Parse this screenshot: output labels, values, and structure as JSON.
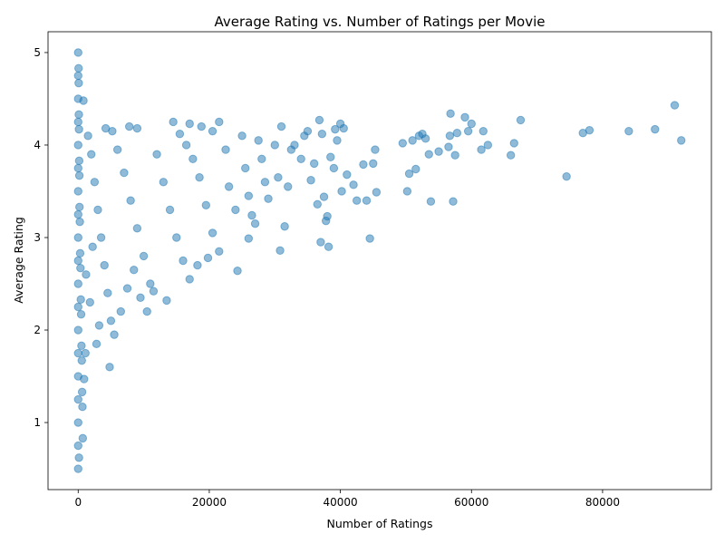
{
  "chart_data": {
    "type": "scatter",
    "title": "Average Rating vs. Number of Ratings per Movie",
    "xlabel": "Number of Ratings",
    "ylabel": "Average Rating",
    "xlim": [
      -4600,
      96600
    ],
    "ylim": [
      0.275,
      5.225
    ],
    "x_ticks": [
      0,
      20000,
      40000,
      60000,
      80000
    ],
    "x_tick_labels": [
      "0",
      "20000",
      "40000",
      "60000",
      "80000"
    ],
    "y_ticks": [
      1,
      2,
      3,
      4,
      5
    ],
    "y_tick_labels": [
      "1",
      "2",
      "3",
      "4",
      "5"
    ],
    "grid": false,
    "legend": false,
    "marker_color": "#1f77b4",
    "marker_alpha": 0.5,
    "points": [
      [
        0,
        5.0
      ],
      [
        0,
        4.75
      ],
      [
        0,
        4.5
      ],
      [
        0,
        4.25
      ],
      [
        0,
        4.0
      ],
      [
        0,
        3.75
      ],
      [
        0,
        3.5
      ],
      [
        0,
        3.25
      ],
      [
        0,
        3.0
      ],
      [
        0,
        2.75
      ],
      [
        0,
        2.5
      ],
      [
        0,
        2.25
      ],
      [
        0,
        2.0
      ],
      [
        0,
        1.75
      ],
      [
        0,
        1.5
      ],
      [
        0,
        1.25
      ],
      [
        0,
        1.0
      ],
      [
        0,
        0.75
      ],
      [
        0,
        0.5
      ],
      [
        60,
        4.83
      ],
      [
        80,
        4.67
      ],
      [
        100,
        4.33
      ],
      [
        120,
        4.17
      ],
      [
        150,
        3.83
      ],
      [
        180,
        3.67
      ],
      [
        200,
        3.33
      ],
      [
        250,
        3.17
      ],
      [
        300,
        2.83
      ],
      [
        350,
        2.67
      ],
      [
        400,
        2.33
      ],
      [
        450,
        2.17
      ],
      [
        500,
        1.83
      ],
      [
        550,
        1.67
      ],
      [
        600,
        1.33
      ],
      [
        650,
        1.17
      ],
      [
        700,
        0.83
      ],
      [
        120,
        0.62
      ],
      [
        900,
        1.47
      ],
      [
        1100,
        1.75
      ],
      [
        800,
        4.48
      ],
      [
        1500,
        4.1
      ],
      [
        2000,
        3.9
      ],
      [
        2500,
        3.6
      ],
      [
        3000,
        3.3
      ],
      [
        3500,
        3.0
      ],
      [
        4000,
        2.7
      ],
      [
        4500,
        2.4
      ],
      [
        5000,
        2.1
      ],
      [
        5500,
        1.95
      ],
      [
        4800,
        1.6
      ],
      [
        3200,
        2.05
      ],
      [
        2800,
        1.85
      ],
      [
        1800,
        2.3
      ],
      [
        1200,
        2.6
      ],
      [
        2200,
        2.9
      ],
      [
        6000,
        3.95
      ],
      [
        7000,
        3.7
      ],
      [
        8000,
        3.4
      ],
      [
        9000,
        3.1
      ],
      [
        10000,
        2.8
      ],
      [
        11000,
        2.5
      ],
      [
        6500,
        2.2
      ],
      [
        7500,
        2.45
      ],
      [
        8500,
        2.65
      ],
      [
        9500,
        2.35
      ],
      [
        10500,
        2.2
      ],
      [
        11500,
        2.42
      ],
      [
        12000,
        3.9
      ],
      [
        13000,
        3.6
      ],
      [
        14000,
        3.3
      ],
      [
        15000,
        3.0
      ],
      [
        16000,
        2.75
      ],
      [
        17000,
        2.55
      ],
      [
        13500,
        2.32
      ],
      [
        14500,
        4.25
      ],
      [
        15500,
        4.12
      ],
      [
        9000,
        4.18
      ],
      [
        7800,
        4.2
      ],
      [
        5200,
        4.15
      ],
      [
        4200,
        4.18
      ],
      [
        16500,
        4.0
      ],
      [
        17500,
        3.85
      ],
      [
        18500,
        3.65
      ],
      [
        19500,
        3.35
      ],
      [
        20500,
        3.05
      ],
      [
        21500,
        2.85
      ],
      [
        18200,
        2.7
      ],
      [
        19800,
        2.78
      ],
      [
        17000,
        4.23
      ],
      [
        18800,
        4.2
      ],
      [
        20500,
        4.15
      ],
      [
        21500,
        4.25
      ],
      [
        22500,
        3.95
      ],
      [
        23000,
        3.55
      ],
      [
        24000,
        3.3
      ],
      [
        24300,
        2.64
      ],
      [
        25000,
        4.1
      ],
      [
        25500,
        3.75
      ],
      [
        26000,
        3.45
      ],
      [
        26500,
        3.24
      ],
      [
        26000,
        2.99
      ],
      [
        27000,
        3.15
      ],
      [
        27500,
        4.05
      ],
      [
        28000,
        3.85
      ],
      [
        28500,
        3.6
      ],
      [
        29000,
        3.42
      ],
      [
        30000,
        4.0
      ],
      [
        30500,
        3.65
      ],
      [
        30800,
        2.86
      ],
      [
        31000,
        4.2
      ],
      [
        31500,
        3.12
      ],
      [
        32000,
        3.55
      ],
      [
        32500,
        3.95
      ],
      [
        33000,
        4.0
      ],
      [
        34000,
        3.85
      ],
      [
        34500,
        4.1
      ],
      [
        35000,
        4.15
      ],
      [
        35500,
        3.62
      ],
      [
        36000,
        3.8
      ],
      [
        36500,
        3.36
      ],
      [
        36800,
        4.27
      ],
      [
        37000,
        2.95
      ],
      [
        37200,
        4.12
      ],
      [
        37500,
        3.44
      ],
      [
        37800,
        3.18
      ],
      [
        38000,
        3.23
      ],
      [
        38200,
        2.9
      ],
      [
        38500,
        3.87
      ],
      [
        39000,
        3.75
      ],
      [
        39200,
        4.17
      ],
      [
        39500,
        4.05
      ],
      [
        40000,
        4.23
      ],
      [
        40200,
        3.5
      ],
      [
        40500,
        4.18
      ],
      [
        41000,
        3.68
      ],
      [
        42000,
        3.57
      ],
      [
        42500,
        3.4
      ],
      [
        43500,
        3.79
      ],
      [
        44000,
        3.4
      ],
      [
        44500,
        2.99
      ],
      [
        45000,
        3.8
      ],
      [
        45300,
        3.95
      ],
      [
        45500,
        3.49
      ],
      [
        49500,
        4.02
      ],
      [
        50200,
        3.5
      ],
      [
        50500,
        3.69
      ],
      [
        51000,
        4.05
      ],
      [
        51500,
        3.74
      ],
      [
        52000,
        4.1
      ],
      [
        52500,
        4.12
      ],
      [
        53000,
        4.07
      ],
      [
        53500,
        3.9
      ],
      [
        53800,
        3.39
      ],
      [
        55000,
        3.93
      ],
      [
        56500,
        3.98
      ],
      [
        56700,
        4.1
      ],
      [
        56800,
        4.34
      ],
      [
        57200,
        3.39
      ],
      [
        57500,
        3.89
      ],
      [
        57800,
        4.13
      ],
      [
        59000,
        4.3
      ],
      [
        59500,
        4.15
      ],
      [
        60000,
        4.23
      ],
      [
        61500,
        3.95
      ],
      [
        61800,
        4.15
      ],
      [
        62500,
        4.0
      ],
      [
        66000,
        3.89
      ],
      [
        66500,
        4.02
      ],
      [
        67500,
        4.27
      ],
      [
        74500,
        3.66
      ],
      [
        77000,
        4.13
      ],
      [
        78000,
        4.16
      ],
      [
        84000,
        4.15
      ],
      [
        88000,
        4.17
      ],
      [
        91000,
        4.43
      ],
      [
        92000,
        4.05
      ]
    ]
  }
}
